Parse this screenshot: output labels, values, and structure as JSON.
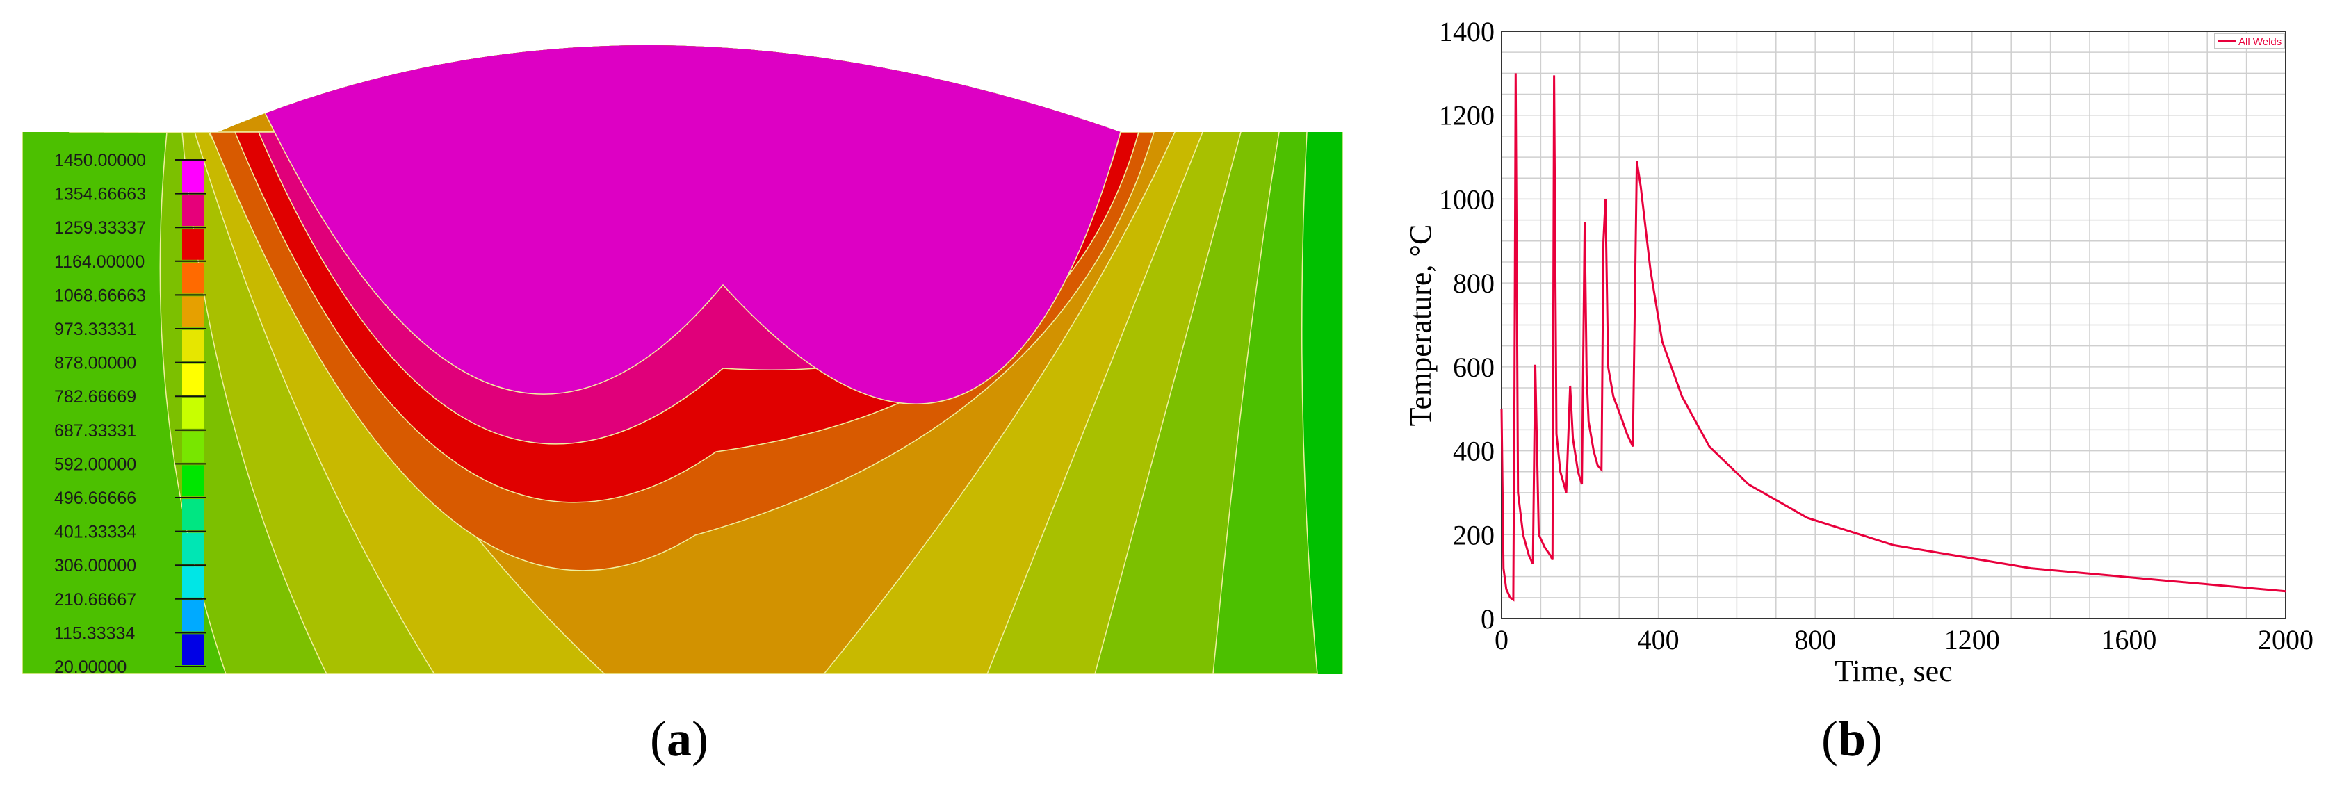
{
  "panel_labels": {
    "a": "a",
    "b": "b"
  },
  "contour": {
    "legend_levels": [
      "1450.00000",
      "1354.66663",
      "1259.33337",
      "1164.00000",
      "1068.66663",
      "973.33331",
      "878.00000",
      "782.66669",
      "687.33331",
      "592.00000",
      "496.66666",
      "401.33334",
      "306.00000",
      "210.66667",
      "115.33334",
      "20.00000"
    ],
    "legend_colors": [
      "#ff00ff",
      "#e6007a",
      "#e60000",
      "#ff6a00",
      "#e6a000",
      "#e6e600",
      "#ffff00",
      "#c8ff00",
      "#78e600",
      "#00e600",
      "#00e682",
      "#00e6b4",
      "#00e6e6",
      "#00aaff",
      "#0064ff",
      "#0000e6"
    ],
    "region_colors": {
      "pool": "#dd00c4",
      "band1": "#e0007a",
      "band2": "#e00000",
      "band3": "#d85a00",
      "band4": "#d29200",
      "band5": "#c8b900",
      "band6": "#a8c000",
      "band7": "#7cc000",
      "outer": "#4cc000",
      "right_edge": "#00c000"
    }
  },
  "chart_data": {
    "type": "line",
    "title": "",
    "xlabel": "Time, sec",
    "ylabel": "Temperature, °C",
    "xlim": [
      0,
      2000
    ],
    "ylim": [
      0,
      1400
    ],
    "xticks": [
      0,
      400,
      800,
      1200,
      1600,
      2000
    ],
    "yticks": [
      0,
      200,
      400,
      600,
      800,
      1000,
      1200,
      1400
    ],
    "grid": true,
    "legend_position": "top-right",
    "series": [
      {
        "name": "All Welds",
        "color": "#e8003c",
        "x": [
          0,
          5,
          12,
          22,
          30,
          33,
          36,
          42,
          55,
          70,
          80,
          86,
          95,
          110,
          125,
          130,
          134,
          140,
          150,
          165,
          175,
          182,
          195,
          205,
          212,
          217,
          222,
          235,
          245,
          255,
          260,
          265,
          272,
          285,
          305,
          320,
          335,
          345,
          355,
          380,
          410,
          460,
          530,
          630,
          780,
          1000,
          1350,
          1700,
          2000
        ],
        "y": [
          500,
          120,
          70,
          50,
          45,
          540,
          1300,
          300,
          200,
          150,
          130,
          605,
          200,
          170,
          150,
          140,
          1295,
          440,
          350,
          300,
          555,
          430,
          350,
          320,
          945,
          580,
          470,
          400,
          365,
          355,
          900,
          1000,
          600,
          530,
          480,
          440,
          410,
          1090,
          1030,
          830,
          660,
          530,
          410,
          320,
          240,
          175,
          120,
          90,
          65
        ]
      }
    ]
  }
}
